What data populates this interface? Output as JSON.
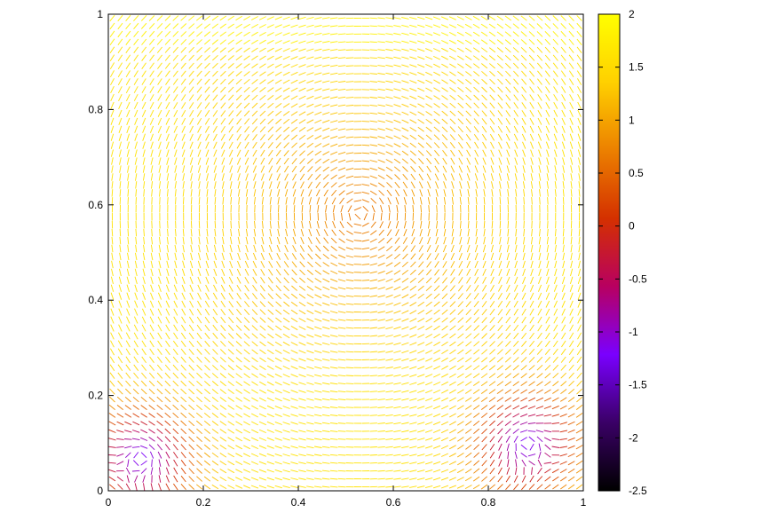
{
  "chart_data": {
    "type": "vector_field",
    "title": "",
    "xlabel": "",
    "ylabel": "",
    "xlim": [
      0,
      1
    ],
    "ylim": [
      0,
      1
    ],
    "x_ticks": [
      "0",
      "0.2",
      "0.4",
      "0.6",
      "0.8",
      "1"
    ],
    "y_ticks": [
      "0",
      "0.2",
      "0.4",
      "0.6",
      "0.8",
      "1"
    ],
    "grid": false,
    "colorbar": {
      "min": -2.5,
      "max": 2,
      "ticks": [
        "2",
        "1.5",
        "1",
        "0.5",
        "0",
        "-0.5",
        "-1",
        "-1.5",
        "-2",
        "-2.5"
      ],
      "palette": [
        "#000000",
        "#3a0066",
        "#7a00ff",
        "#b80060",
        "#d43000",
        "#ec8000",
        "#ffd000",
        "#ffff00"
      ]
    },
    "field": {
      "description_values": "lid-driven cavity style circulation",
      "primary_vortex_center": [
        0.53,
        0.58
      ],
      "secondary_vortices": [
        {
          "center": [
            0.07,
            0.07
          ],
          "region": "bottom-left corner"
        },
        {
          "center": [
            0.88,
            0.1
          ],
          "region": "bottom-right corner"
        }
      ],
      "grid_points": [
        60,
        60
      ]
    }
  }
}
